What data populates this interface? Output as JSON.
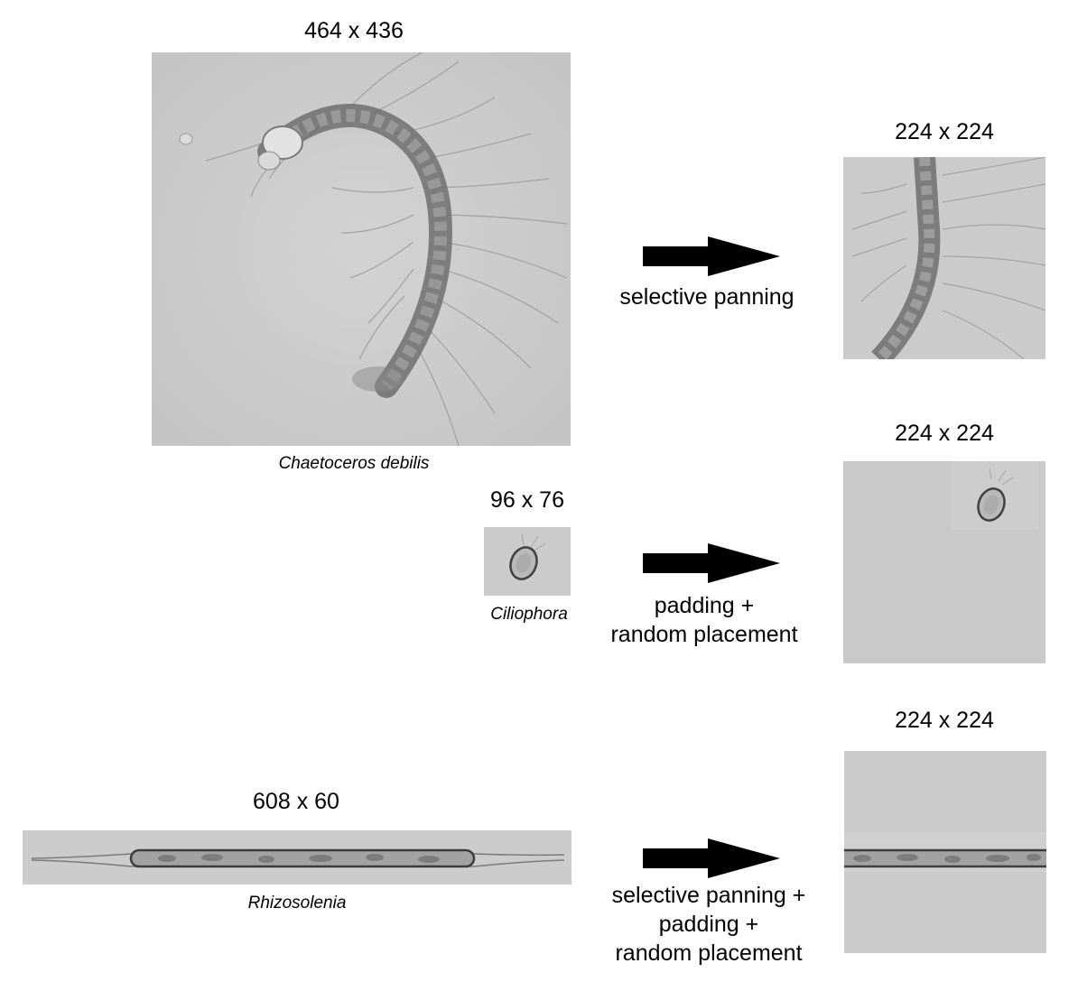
{
  "rows": [
    {
      "source_dims": "464 x 436",
      "species": "Chaetoceros debilis",
      "operation": [
        "selective panning"
      ],
      "target_dims": "224 x 224"
    },
    {
      "source_dims": "96 x 76",
      "species": "Ciliophora",
      "operation": [
        "padding +",
        "random placement"
      ],
      "target_dims": "224 x 224"
    },
    {
      "source_dims": "608 x 60",
      "species": "Rhizosolenia",
      "operation": [
        "selective panning +",
        "padding +",
        "random placement"
      ],
      "target_dims": "224 x 224"
    }
  ]
}
